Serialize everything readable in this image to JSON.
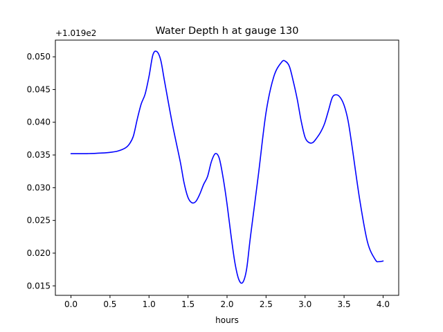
{
  "chart_data": {
    "type": "line",
    "title": "Water Depth h at gauge 130",
    "xlabel": "hours",
    "ylabel": "",
    "offset_label": "+1.019e2",
    "xlim": [
      -0.2,
      4.2
    ],
    "ylim": [
      0.01355,
      0.05255
    ],
    "x_ticks": [
      0.0,
      0.5,
      1.0,
      1.5,
      2.0,
      2.5,
      3.0,
      3.5,
      4.0
    ],
    "x_tick_labels": [
      "0.0",
      "0.5",
      "1.0",
      "1.5",
      "2.0",
      "2.5",
      "3.0",
      "3.5",
      "4.0"
    ],
    "y_ticks": [
      0.015,
      0.02,
      0.025,
      0.03,
      0.035,
      0.04,
      0.045,
      0.05
    ],
    "y_tick_labels": [
      "0.015",
      "0.020",
      "0.025",
      "0.030",
      "0.035",
      "0.040",
      "0.045",
      "0.050"
    ],
    "grid": false,
    "legend": "none",
    "series": [
      {
        "color": "#0000ff",
        "x": [
          0.0,
          0.2,
          0.4,
          0.5,
          0.6,
          0.7,
          0.75,
          0.8,
          0.85,
          0.9,
          0.95,
          1.0,
          1.05,
          1.1,
          1.15,
          1.2,
          1.3,
          1.4,
          1.45,
          1.5,
          1.55,
          1.6,
          1.65,
          1.7,
          1.75,
          1.8,
          1.85,
          1.9,
          1.95,
          2.0,
          2.05,
          2.1,
          2.15,
          2.2,
          2.25,
          2.3,
          2.4,
          2.5,
          2.6,
          2.7,
          2.75,
          2.8,
          2.85,
          2.9,
          2.95,
          3.0,
          3.05,
          3.1,
          3.15,
          3.2,
          3.25,
          3.3,
          3.35,
          3.4,
          3.45,
          3.5,
          3.55,
          3.6,
          3.7,
          3.8,
          3.9,
          3.95,
          4.0
        ],
        "y": [
          0.0352,
          0.0352,
          0.0353,
          0.0354,
          0.0356,
          0.0361,
          0.0367,
          0.0379,
          0.0405,
          0.0428,
          0.0443,
          0.047,
          0.0503,
          0.0508,
          0.0495,
          0.0462,
          0.0397,
          0.034,
          0.0307,
          0.0285,
          0.0277,
          0.0279,
          0.029,
          0.0305,
          0.0317,
          0.034,
          0.0352,
          0.0345,
          0.0315,
          0.0275,
          0.0228,
          0.0186,
          0.016,
          0.0155,
          0.0175,
          0.0225,
          0.0318,
          0.0415,
          0.047,
          0.0492,
          0.0493,
          0.0485,
          0.0462,
          0.0435,
          0.0402,
          0.0377,
          0.0369,
          0.0369,
          0.0376,
          0.0385,
          0.0398,
          0.0418,
          0.0438,
          0.0442,
          0.0438,
          0.0426,
          0.0403,
          0.0365,
          0.0282,
          0.0217,
          0.019,
          0.0187,
          0.0188
        ]
      }
    ]
  }
}
